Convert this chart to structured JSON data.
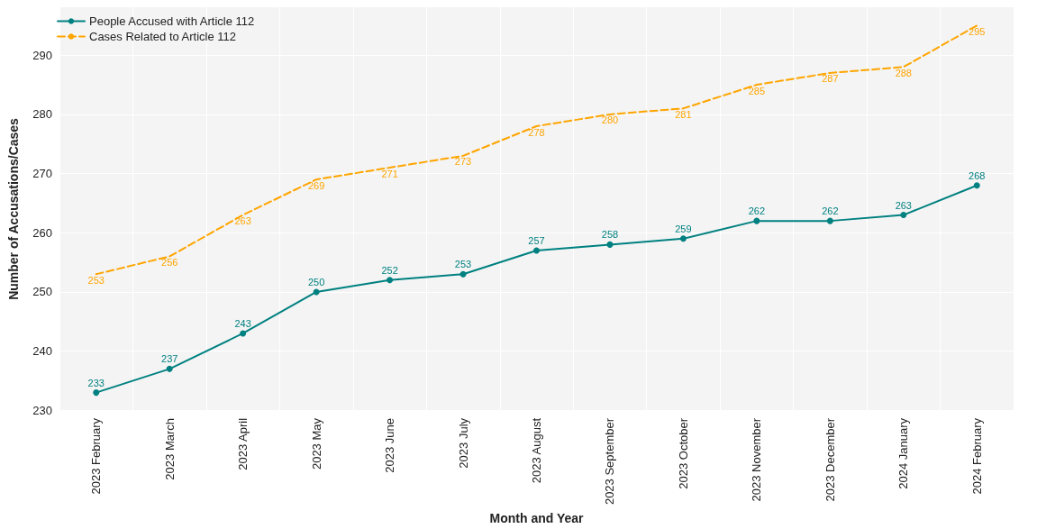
{
  "chart_data": {
    "type": "line",
    "xlabel": "Month and Year",
    "ylabel": "Number of Accusations/Cases",
    "categories": [
      "2023 February",
      "2023 March",
      "2023 April",
      "2023 May",
      "2023 June",
      "2023 July",
      "2023 August",
      "2023 September",
      "2023 October",
      "2023 November",
      "2023 December",
      "2024 January",
      "2024 February"
    ],
    "series": [
      {
        "name": "People Accused with Article 112",
        "color": "#008080",
        "marker": "circle",
        "line_style": "solid",
        "values": [
          233,
          237,
          243,
          250,
          252,
          253,
          257,
          258,
          259,
          262,
          262,
          263,
          268
        ]
      },
      {
        "name": "Cases Related to Article 112",
        "color": "#ffa500",
        "marker": "none",
        "line_style": "dashed",
        "values": [
          253,
          256,
          263,
          269,
          271,
          273,
          278,
          280,
          281,
          285,
          287,
          288,
          295
        ]
      }
    ],
    "ylim": [
      229.9,
      298.1
    ],
    "yticks": [
      230,
      240,
      250,
      260,
      270,
      280,
      290
    ],
    "grid": true,
    "legend": "top left",
    "data_labels": true
  }
}
